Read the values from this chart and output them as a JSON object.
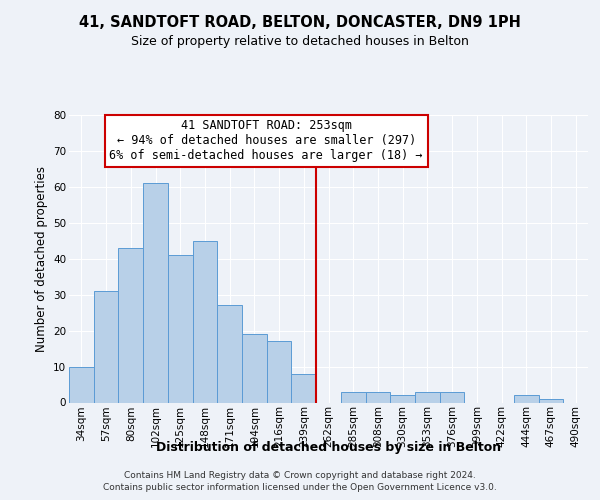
{
  "title1": "41, SANDTOFT ROAD, BELTON, DONCASTER, DN9 1PH",
  "title2": "Size of property relative to detached houses in Belton",
  "xlabel": "Distribution of detached houses by size in Belton",
  "ylabel": "Number of detached properties",
  "bin_labels": [
    "34sqm",
    "57sqm",
    "80sqm",
    "102sqm",
    "125sqm",
    "148sqm",
    "171sqm",
    "194sqm",
    "216sqm",
    "239sqm",
    "262sqm",
    "285sqm",
    "308sqm",
    "330sqm",
    "353sqm",
    "376sqm",
    "399sqm",
    "422sqm",
    "444sqm",
    "467sqm",
    "490sqm"
  ],
  "bar_values": [
    10,
    31,
    43,
    61,
    41,
    45,
    27,
    19,
    17,
    8,
    0,
    3,
    3,
    2,
    3,
    3,
    0,
    0,
    2,
    1,
    0
  ],
  "bar_color": "#b8d0e8",
  "bar_edge_color": "#5b9bd5",
  "vline_color": "#cc0000",
  "vline_pos": 9.5,
  "annotation_title": "41 SANDTOFT ROAD: 253sqm",
  "annotation_line1": "← 94% of detached houses are smaller (297)",
  "annotation_line2": "6% of semi-detached houses are larger (18) →",
  "ylim": [
    0,
    80
  ],
  "yticks": [
    0,
    10,
    20,
    30,
    40,
    50,
    60,
    70,
    80
  ],
  "footer1": "Contains HM Land Registry data © Crown copyright and database right 2024.",
  "footer2": "Contains public sector information licensed under the Open Government Licence v3.0.",
  "bg_color": "#eef2f8",
  "plot_bg_color": "#eef2f8",
  "grid_color": "#ffffff",
  "title1_fontsize": 10.5,
  "title2_fontsize": 9,
  "ylabel_fontsize": 8.5,
  "xlabel_fontsize": 9,
  "tick_fontsize": 7.5,
  "annotation_fontsize": 8.5,
  "footer_fontsize": 6.5
}
